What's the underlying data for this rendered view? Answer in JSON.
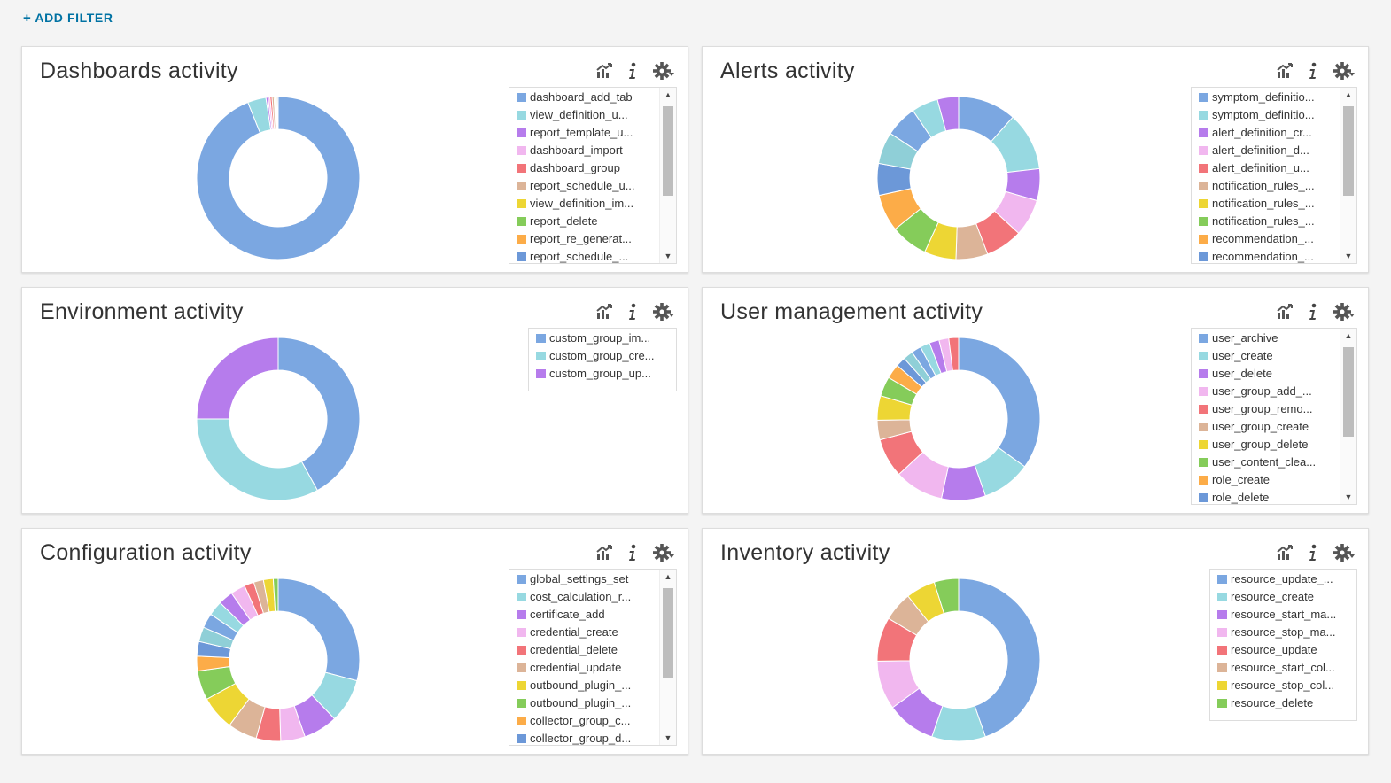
{
  "add_filter_label": "ADD FILTER",
  "add_filter_plus": "+",
  "palette": [
    "#7ba7e1",
    "#97d9e1",
    "#b67cec",
    "#f1b7ef",
    "#f27479",
    "#dcb498",
    "#edd634",
    "#85cc5a",
    "#fcac48",
    "#6c98d8",
    "#8fcfd7"
  ],
  "panels": [
    {
      "title": "Dashboards activity",
      "legend": [
        "dashboard_add_tab",
        "view_definition_u...",
        "report_template_u...",
        "dashboard_import",
        "dashboard_group",
        "report_schedule_u...",
        "view_definition_im...",
        "report_delete",
        "report_re_generat...",
        "report_schedule_..."
      ],
      "legend_scroll": true,
      "chart_data": {
        "type": "pie",
        "values": [
          93,
          3.6,
          0.4,
          0.4,
          0.4,
          0.4,
          0.2,
          0.2,
          0.2,
          0.2
        ]
      }
    },
    {
      "title": "Alerts activity",
      "legend": [
        "symptom_definitio...",
        "symptom_definitio...",
        "alert_definition_cr...",
        "alert_definition_d...",
        "alert_definition_u...",
        "notification_rules_...",
        "notification_rules_...",
        "notification_rules_...",
        "recommendation_...",
        "recommendation_..."
      ],
      "legend_scroll": true,
      "chart_data": {
        "type": "pie",
        "values": [
          11,
          11,
          6,
          7,
          7,
          6,
          6,
          7,
          7,
          6,
          6,
          6,
          5,
          4
        ]
      }
    },
    {
      "title": "Environment activity",
      "legend": [
        "custom_group_im...",
        "custom_group_cre...",
        "custom_group_up..."
      ],
      "legend_scroll": false,
      "chart_data": {
        "type": "pie",
        "values": [
          42,
          33,
          25
        ]
      }
    },
    {
      "title": "User management activity",
      "legend": [
        "user_archive",
        "user_create",
        "user_delete",
        "user_group_add_...",
        "user_group_remo...",
        "user_group_create",
        "user_group_delete",
        "user_content_clea...",
        "role_create",
        "role_delete"
      ],
      "legend_scroll": true,
      "chart_data": {
        "type": "pie",
        "values": [
          36,
          10,
          9,
          10,
          8,
          4,
          5,
          4,
          3,
          2,
          2,
          2,
          2,
          2,
          2,
          2
        ]
      }
    },
    {
      "title": "Configuration activity",
      "legend": [
        "global_settings_set",
        "cost_calculation_r...",
        "certificate_add",
        "credential_create",
        "credential_delete",
        "credential_update",
        "outbound_plugin_...",
        "outbound_plugin_...",
        "collector_group_c...",
        "collector_group_d..."
      ],
      "legend_scroll": true,
      "chart_data": {
        "type": "pie",
        "values": [
          30,
          9,
          7,
          5,
          5,
          6,
          7,
          6,
          3,
          3,
          3,
          3,
          3,
          3,
          3,
          2,
          2,
          2,
          1
        ]
      }
    },
    {
      "title": "Inventory activity",
      "legend": [
        "resource_update_...",
        "resource_create",
        "resource_start_ma...",
        "resource_stop_ma...",
        "resource_update",
        "resource_start_col...",
        "resource_stop_col...",
        "resource_delete"
      ],
      "legend_scroll": false,
      "chart_data": {
        "type": "pie",
        "values": [
          46,
          11,
          10,
          10,
          9,
          6,
          6,
          5
        ]
      }
    }
  ]
}
